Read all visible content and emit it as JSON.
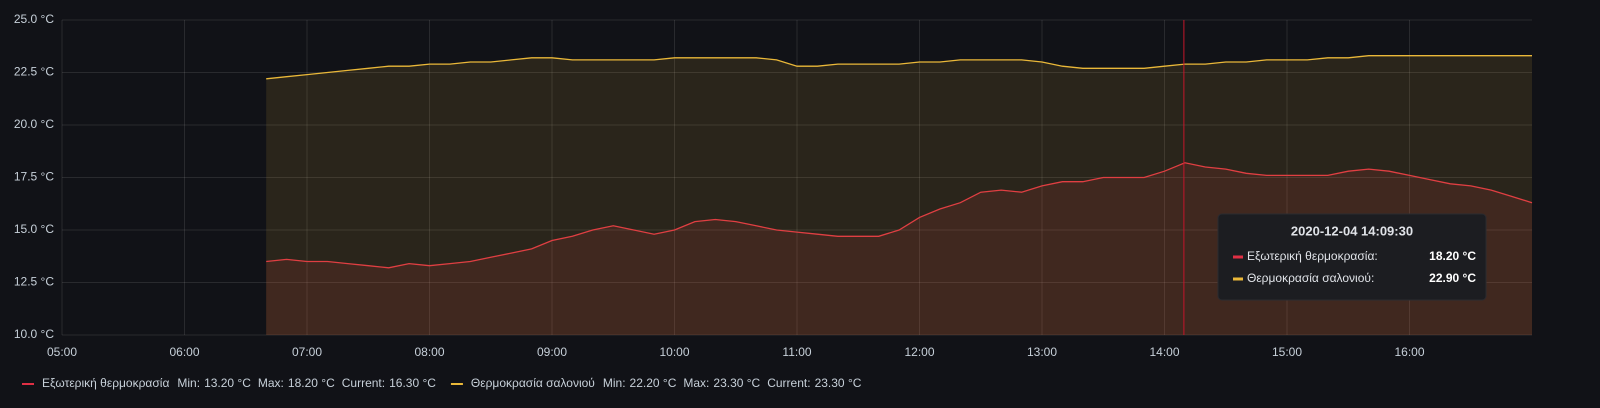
{
  "chart_data": {
    "type": "line",
    "x": [
      "06:40",
      "06:50",
      "07:00",
      "07:10",
      "07:20",
      "07:30",
      "07:40",
      "07:50",
      "08:00",
      "08:10",
      "08:20",
      "08:30",
      "08:40",
      "08:50",
      "09:00",
      "09:10",
      "09:20",
      "09:30",
      "09:40",
      "09:50",
      "10:00",
      "10:10",
      "10:20",
      "10:30",
      "10:40",
      "10:50",
      "11:00",
      "11:10",
      "11:20",
      "11:30",
      "11:40",
      "11:50",
      "12:00",
      "12:10",
      "12:20",
      "12:30",
      "12:40",
      "12:50",
      "13:00",
      "13:10",
      "13:20",
      "13:30",
      "13:40",
      "13:50",
      "14:00",
      "14:10",
      "14:20",
      "14:30",
      "14:40",
      "14:50",
      "15:00",
      "15:10",
      "15:20",
      "15:30",
      "15:40",
      "15:50",
      "16:00",
      "16:10",
      "16:20",
      "16:30",
      "16:40",
      "16:50",
      "17:00"
    ],
    "xlim": [
      "05:00",
      "17:00"
    ],
    "xticks": [
      "05:00",
      "06:00",
      "07:00",
      "08:00",
      "09:00",
      "10:00",
      "11:00",
      "12:00",
      "13:00",
      "14:00",
      "15:00",
      "16:00"
    ],
    "ylim": [
      10,
      25
    ],
    "yticks": [
      {
        "value": 10,
        "label": "10.0 °C"
      },
      {
        "value": 12.5,
        "label": "12.5 °C"
      },
      {
        "value": 15,
        "label": "15.0 °C"
      },
      {
        "value": 17.5,
        "label": "17.5 °C"
      },
      {
        "value": 20,
        "label": "20.0 °C"
      },
      {
        "value": 22.5,
        "label": "22.5 °C"
      },
      {
        "value": 25,
        "label": "25.0 °C"
      }
    ],
    "grid": true,
    "fill_area": true,
    "stat_names": [
      "Min:",
      "Max:",
      "Current:"
    ],
    "series": [
      {
        "name": "Εξωτερική θερμοκρασία",
        "color": "#e02f44",
        "stats": [
          "13.20 °C",
          "18.20 °C",
          "16.30 °C"
        ],
        "values": [
          13.5,
          13.6,
          13.5,
          13.5,
          13.4,
          13.3,
          13.2,
          13.4,
          13.3,
          13.4,
          13.5,
          13.7,
          13.9,
          14.1,
          14.5,
          14.7,
          15.0,
          15.2,
          15.0,
          14.8,
          15.0,
          15.4,
          15.5,
          15.4,
          15.2,
          15.0,
          14.9,
          14.8,
          14.7,
          14.7,
          14.7,
          15.0,
          15.6,
          16.0,
          16.3,
          16.8,
          16.9,
          16.8,
          17.1,
          17.3,
          17.3,
          17.5,
          17.5,
          17.5,
          17.8,
          18.2,
          18.0,
          17.9,
          17.7,
          17.6,
          17.6,
          17.6,
          17.6,
          17.8,
          17.9,
          17.8,
          17.6,
          17.4,
          17.2,
          17.1,
          16.9,
          16.6,
          16.3
        ]
      },
      {
        "name": "Θερμοκρασία σαλονιού",
        "color": "#eab839",
        "stats": [
          "22.20 °C",
          "23.30 °C",
          "23.30 °C"
        ],
        "values": [
          22.2,
          22.3,
          22.4,
          22.5,
          22.6,
          22.7,
          22.8,
          22.8,
          22.9,
          22.9,
          23.0,
          23.0,
          23.1,
          23.2,
          23.2,
          23.1,
          23.1,
          23.1,
          23.1,
          23.1,
          23.2,
          23.2,
          23.2,
          23.2,
          23.2,
          23.1,
          22.8,
          22.8,
          22.9,
          22.9,
          22.9,
          22.9,
          23.0,
          23.0,
          23.1,
          23.1,
          23.1,
          23.1,
          23.0,
          22.8,
          22.7,
          22.7,
          22.7,
          22.7,
          22.8,
          22.9,
          22.9,
          23.0,
          23.0,
          23.1,
          23.1,
          23.1,
          23.2,
          23.2,
          23.3,
          23.3,
          23.3,
          23.3,
          23.3,
          23.3,
          23.3,
          23.3,
          23.3
        ]
      }
    ],
    "tooltip": {
      "title": "2020-12-04 14:09:30",
      "rows": [
        {
          "name": "Εξωτερική θερμοκρασία:",
          "value": "18.20 °C"
        },
        {
          "name": "Θερμοκρασία σαλονιού:",
          "value": "22.90 °C"
        }
      ]
    }
  }
}
